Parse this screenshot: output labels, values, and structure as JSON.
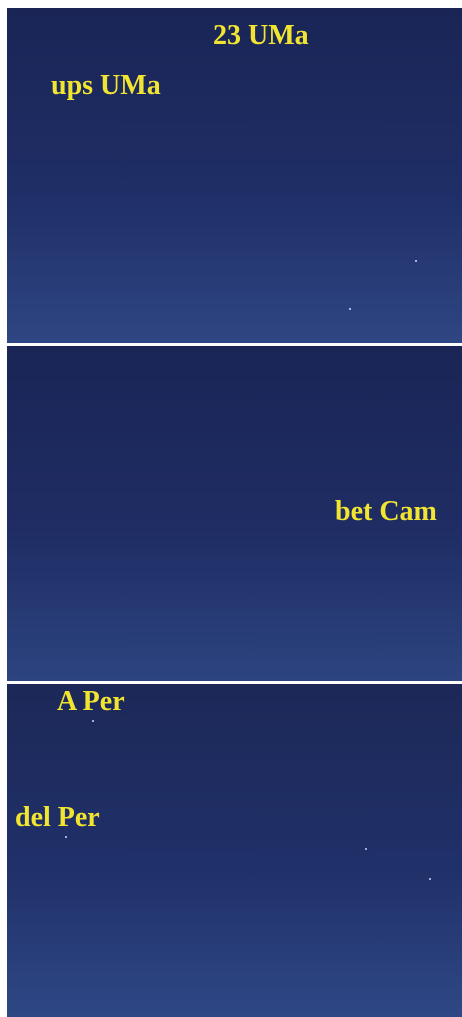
{
  "panels": [
    {
      "labels": [
        "23 UMa",
        "ups UMa"
      ]
    },
    {
      "labels": [
        "bet Cam"
      ]
    },
    {
      "labels": [
        "A Per",
        "del Per"
      ]
    }
  ]
}
